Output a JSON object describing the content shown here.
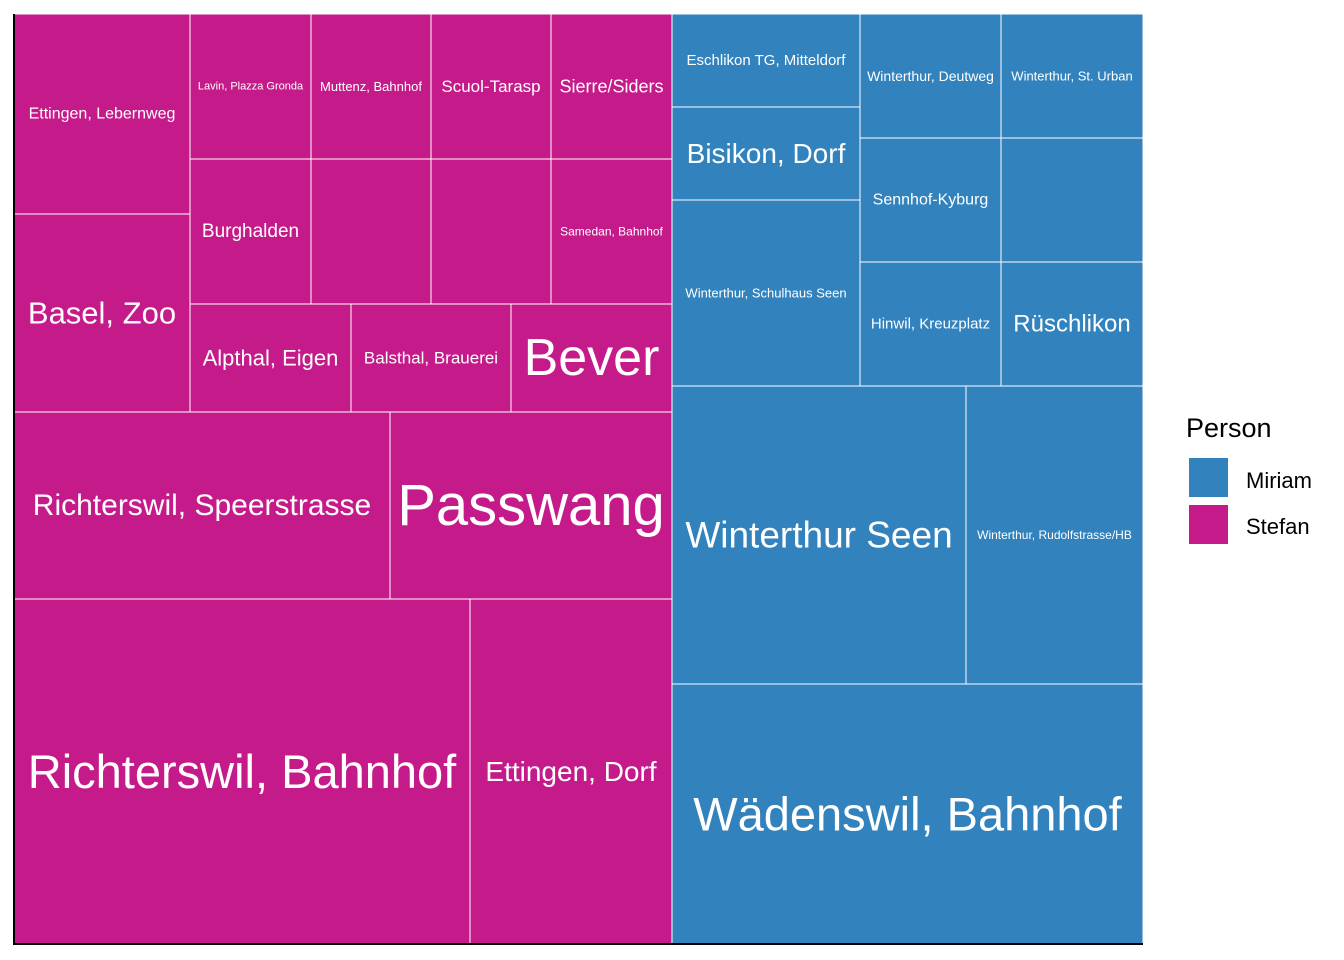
{
  "chart_data": {
    "type": "treemap",
    "legend": {
      "title": "Person",
      "position": "right",
      "entries": [
        {
          "name": "Miriam",
          "color": "#3182BD"
        },
        {
          "name": "Stefan",
          "color": "#C51B8A"
        }
      ]
    },
    "tiles": [
      {
        "label": "Ettingen, Lebernweg",
        "group": "Stefan"
      },
      {
        "label": "Basel, Zoo",
        "group": "Stefan"
      },
      {
        "label": "Lavin, Plazza Gronda",
        "group": "Stefan"
      },
      {
        "label": "Muttenz, Bahnhof",
        "group": "Stefan"
      },
      {
        "label": "Scuol-Tarasp",
        "group": "Stefan"
      },
      {
        "label": "Sierre/Siders",
        "group": "Stefan"
      },
      {
        "label": "Burghalden",
        "group": "Stefan"
      },
      {
        "label": "",
        "group": "Stefan"
      },
      {
        "label": "",
        "group": "Stefan"
      },
      {
        "label": "Samedan, Bahnhof",
        "group": "Stefan"
      },
      {
        "label": "Alpthal, Eigen",
        "group": "Stefan"
      },
      {
        "label": "Balsthal, Brauerei",
        "group": "Stefan"
      },
      {
        "label": "Bever",
        "group": "Stefan"
      },
      {
        "label": "Richterswil, Speerstrasse",
        "group": "Stefan"
      },
      {
        "label": "Passwang",
        "group": "Stefan"
      },
      {
        "label": "Richterswil, Bahnhof",
        "group": "Stefan"
      },
      {
        "label": "Ettingen, Dorf",
        "group": "Stefan"
      },
      {
        "label": "Eschlikon TG, Mitteldorf",
        "group": "Miriam"
      },
      {
        "label": "Bisikon, Dorf",
        "group": "Miriam"
      },
      {
        "label": "Winterthur, Schulhaus Seen",
        "group": "Miriam"
      },
      {
        "label": "Winterthur, Deutweg",
        "group": "Miriam"
      },
      {
        "label": "Winterthur, St. Urban",
        "group": "Miriam"
      },
      {
        "label": "Sennhof-Kyburg",
        "group": "Miriam"
      },
      {
        "label": "",
        "group": "Miriam"
      },
      {
        "label": "Hinwil, Kreuzplatz",
        "group": "Miriam"
      },
      {
        "label": "Rüschlikon",
        "group": "Miriam"
      },
      {
        "label": "Winterthur Seen",
        "group": "Miriam"
      },
      {
        "label": "Winterthur, Rudolfstrasse/HB",
        "group": "Miriam"
      },
      {
        "label": "Wädenswil, Bahnhof",
        "group": "Miriam"
      }
    ]
  }
}
